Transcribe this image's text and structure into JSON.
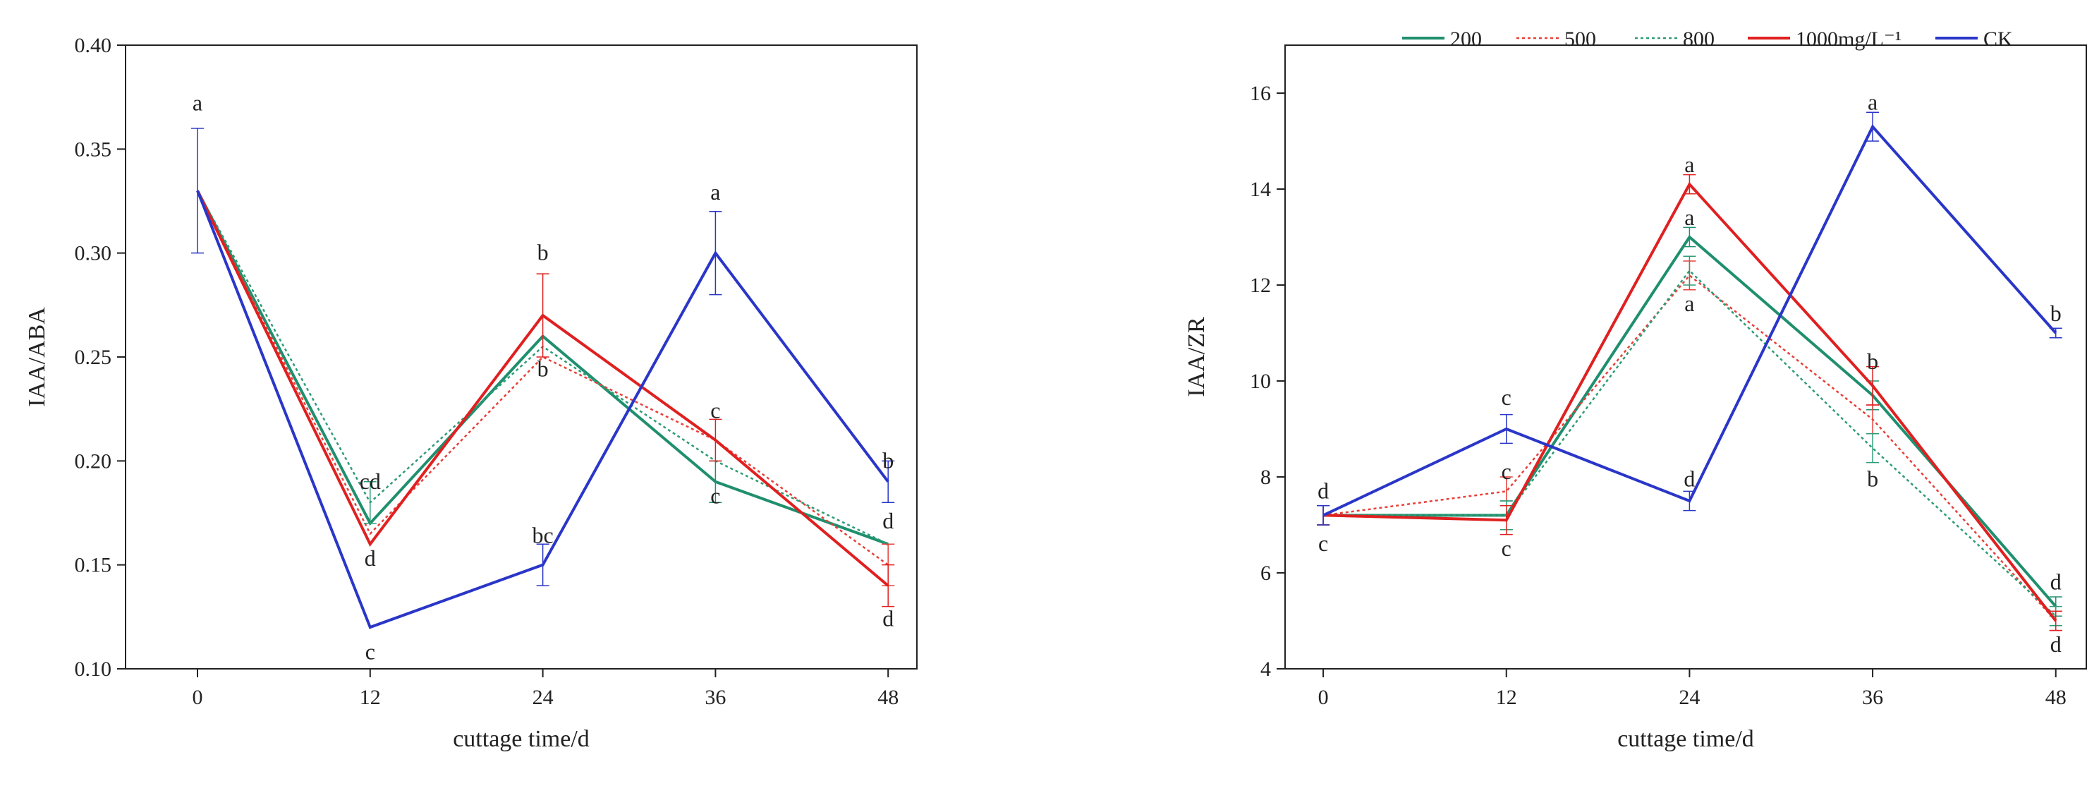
{
  "legend": {
    "items": [
      {
        "label": "200",
        "color": "#1f8f6e",
        "style": "solid"
      },
      {
        "label": "500",
        "color": "#e8403a",
        "style": "dotted"
      },
      {
        "label": "800",
        "color": "#2e9c76",
        "style": "dotted"
      },
      {
        "label": "1000mg/L⁻¹",
        "color": "#e02020",
        "style": "solid"
      },
      {
        "label": "CK",
        "color": "#2a36c8",
        "style": "solid"
      }
    ]
  },
  "chart_data": [
    {
      "type": "line",
      "title": "",
      "xlabel": "cuttage time/d",
      "ylabel": "IAA/ABA",
      "x": [
        0,
        12,
        24,
        36,
        48
      ],
      "xlim": [
        -5,
        50
      ],
      "ylim": [
        0.1,
        0.4
      ],
      "xticks": [
        "0",
        "12",
        "24",
        "36",
        "48"
      ],
      "yticks": [
        "0.10",
        "0.15",
        "0.20",
        "0.25",
        "0.30",
        "0.35",
        "0.40"
      ],
      "series": [
        {
          "name": "200",
          "color": "#1f8f6e",
          "style": "solid",
          "values": [
            0.33,
            0.17,
            0.26,
            0.19,
            0.16
          ],
          "errors": [
            0.0,
            0.0,
            0.0,
            0.01,
            0.0
          ]
        },
        {
          "name": "500",
          "color": "#e8403a",
          "style": "dotted",
          "values": [
            0.33,
            0.165,
            0.25,
            0.21,
            0.15
          ],
          "errors": [
            0.0,
            0.0,
            0.0,
            0.0,
            0.01
          ]
        },
        {
          "name": "800",
          "color": "#2e9c76",
          "style": "dotted",
          "values": [
            0.33,
            0.18,
            0.255,
            0.2,
            0.16
          ],
          "errors": [
            0.0,
            0.01,
            0.0,
            0.0,
            0.0
          ]
        },
        {
          "name": "1000mg/L⁻¹",
          "color": "#e02020",
          "style": "solid",
          "values": [
            0.33,
            0.16,
            0.27,
            0.21,
            0.14
          ],
          "errors": [
            0.0,
            0.0,
            0.02,
            0.01,
            0.01
          ]
        },
        {
          "name": "CK",
          "color": "#2a36c8",
          "style": "solid",
          "values": [
            0.33,
            0.12,
            0.15,
            0.3,
            0.19
          ],
          "errors": [
            0.03,
            0.0,
            0.01,
            0.02,
            0.01
          ]
        }
      ],
      "annotations": [
        {
          "text": "a",
          "x": 0,
          "y": 0.372
        },
        {
          "text": "cd",
          "x": 12,
          "y": 0.19
        },
        {
          "text": "d",
          "x": 12,
          "y": 0.153
        },
        {
          "text": "c",
          "x": 12,
          "y": 0.108
        },
        {
          "text": "b",
          "x": 24,
          "y": 0.3
        },
        {
          "text": "b",
          "x": 24,
          "y": 0.244
        },
        {
          "text": "bc",
          "x": 24,
          "y": 0.164
        },
        {
          "text": "a",
          "x": 36,
          "y": 0.329
        },
        {
          "text": "c",
          "x": 36,
          "y": 0.224
        },
        {
          "text": "c",
          "x": 36,
          "y": 0.183
        },
        {
          "text": "b",
          "x": 48,
          "y": 0.2
        },
        {
          "text": "d",
          "x": 48,
          "y": 0.171
        },
        {
          "text": "d",
          "x": 48,
          "y": 0.124
        }
      ]
    },
    {
      "type": "line",
      "title": "",
      "xlabel": "cuttage time/d",
      "ylabel": "IAA/ZR",
      "x": [
        0,
        12,
        24,
        36,
        48
      ],
      "xlim": [
        -2.5,
        50
      ],
      "ylim": [
        4,
        17
      ],
      "xticks": [
        "0",
        "12",
        "24",
        "36",
        "48"
      ],
      "yticks": [
        "4",
        "6",
        "8",
        "10",
        "12",
        "14",
        "16"
      ],
      "series": [
        {
          "name": "200",
          "color": "#1f8f6e",
          "style": "solid",
          "values": [
            7.2,
            7.2,
            13.0,
            9.7,
            5.3
          ],
          "errors": [
            0.2,
            0.3,
            0.2,
            0.3,
            0.2
          ]
        },
        {
          "name": "500",
          "color": "#e8403a",
          "style": "dotted",
          "values": [
            7.2,
            7.7,
            12.2,
            9.2,
            5.0
          ],
          "errors": [
            0.2,
            0.3,
            0.3,
            0.3,
            0.2
          ]
        },
        {
          "name": "800",
          "color": "#2e9c76",
          "style": "dotted",
          "values": [
            7.2,
            7.2,
            12.3,
            8.6,
            5.1
          ],
          "errors": [
            0.2,
            0.3,
            0.3,
            0.3,
            0.2
          ]
        },
        {
          "name": "1000mg/L⁻¹",
          "color": "#e02020",
          "style": "solid",
          "values": [
            7.2,
            7.1,
            14.1,
            9.9,
            5.0
          ],
          "errors": [
            0.2,
            0.3,
            0.2,
            0.4,
            0.2
          ]
        },
        {
          "name": "CK",
          "color": "#2a36c8",
          "style": "solid",
          "values": [
            7.2,
            9.0,
            7.5,
            15.3,
            11.0
          ],
          "errors": [
            0.2,
            0.3,
            0.2,
            0.3,
            0.1
          ]
        }
      ],
      "annotations": [
        {
          "text": "d",
          "x": 0,
          "y": 7.7
        },
        {
          "text": "c",
          "x": 0,
          "y": 6.6
        },
        {
          "text": "c",
          "x": 12,
          "y": 9.65
        },
        {
          "text": "c",
          "x": 12,
          "y": 8.1
        },
        {
          "text": "c",
          "x": 12,
          "y": 6.5
        },
        {
          "text": "a",
          "x": 24,
          "y": 14.5
        },
        {
          "text": "a",
          "x": 24,
          "y": 13.4
        },
        {
          "text": "a",
          "x": 24,
          "y": 11.6
        },
        {
          "text": "d",
          "x": 24,
          "y": 7.95
        },
        {
          "text": "a",
          "x": 36,
          "y": 15.8
        },
        {
          "text": "b",
          "x": 36,
          "y": 10.4
        },
        {
          "text": "b",
          "x": 36,
          "y": 7.95
        },
        {
          "text": "b",
          "x": 48,
          "y": 11.4
        },
        {
          "text": "d",
          "x": 48,
          "y": 5.8
        },
        {
          "text": "d",
          "x": 48,
          "y": 4.5
        }
      ]
    }
  ]
}
